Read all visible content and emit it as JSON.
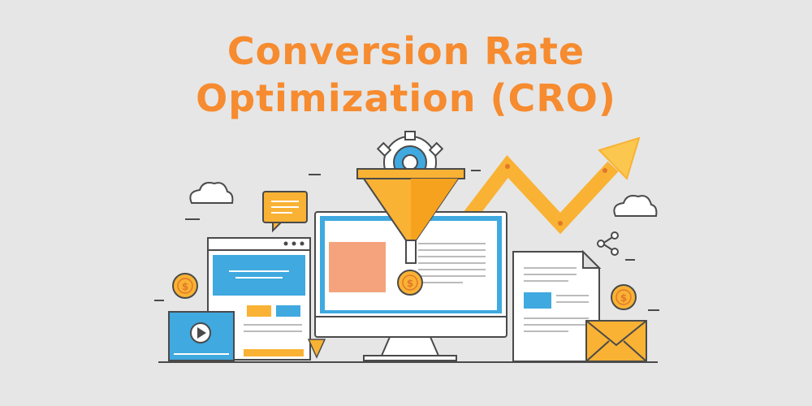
{
  "title": {
    "line1": "Conversion Rate",
    "line2": "Optimization (CRO)"
  },
  "colors": {
    "background": "#e6e6e6",
    "accent_orange": "#f68b2f",
    "funnel_yellow": "#f7b330",
    "arrow_yellow": "#f9b233",
    "screen_blue": "#3fa9e0",
    "outline": "#4a4a4a",
    "coin": "#f7b330"
  },
  "icons": {
    "cloud_left": "cloud-icon",
    "cloud_right": "cloud-icon",
    "chat": "chat-bubble-icon",
    "gear": "gear-icon",
    "funnel": "funnel-icon",
    "growth_arrow": "trend-up-arrow-icon",
    "share": "share-icon",
    "coin": "dollar-coin-icon",
    "video": "play-icon",
    "envelope": "envelope-icon",
    "document": "document-icon",
    "browser": "browser-window-icon",
    "monitor": "monitor-icon"
  },
  "coins": {
    "symbol": "$"
  }
}
